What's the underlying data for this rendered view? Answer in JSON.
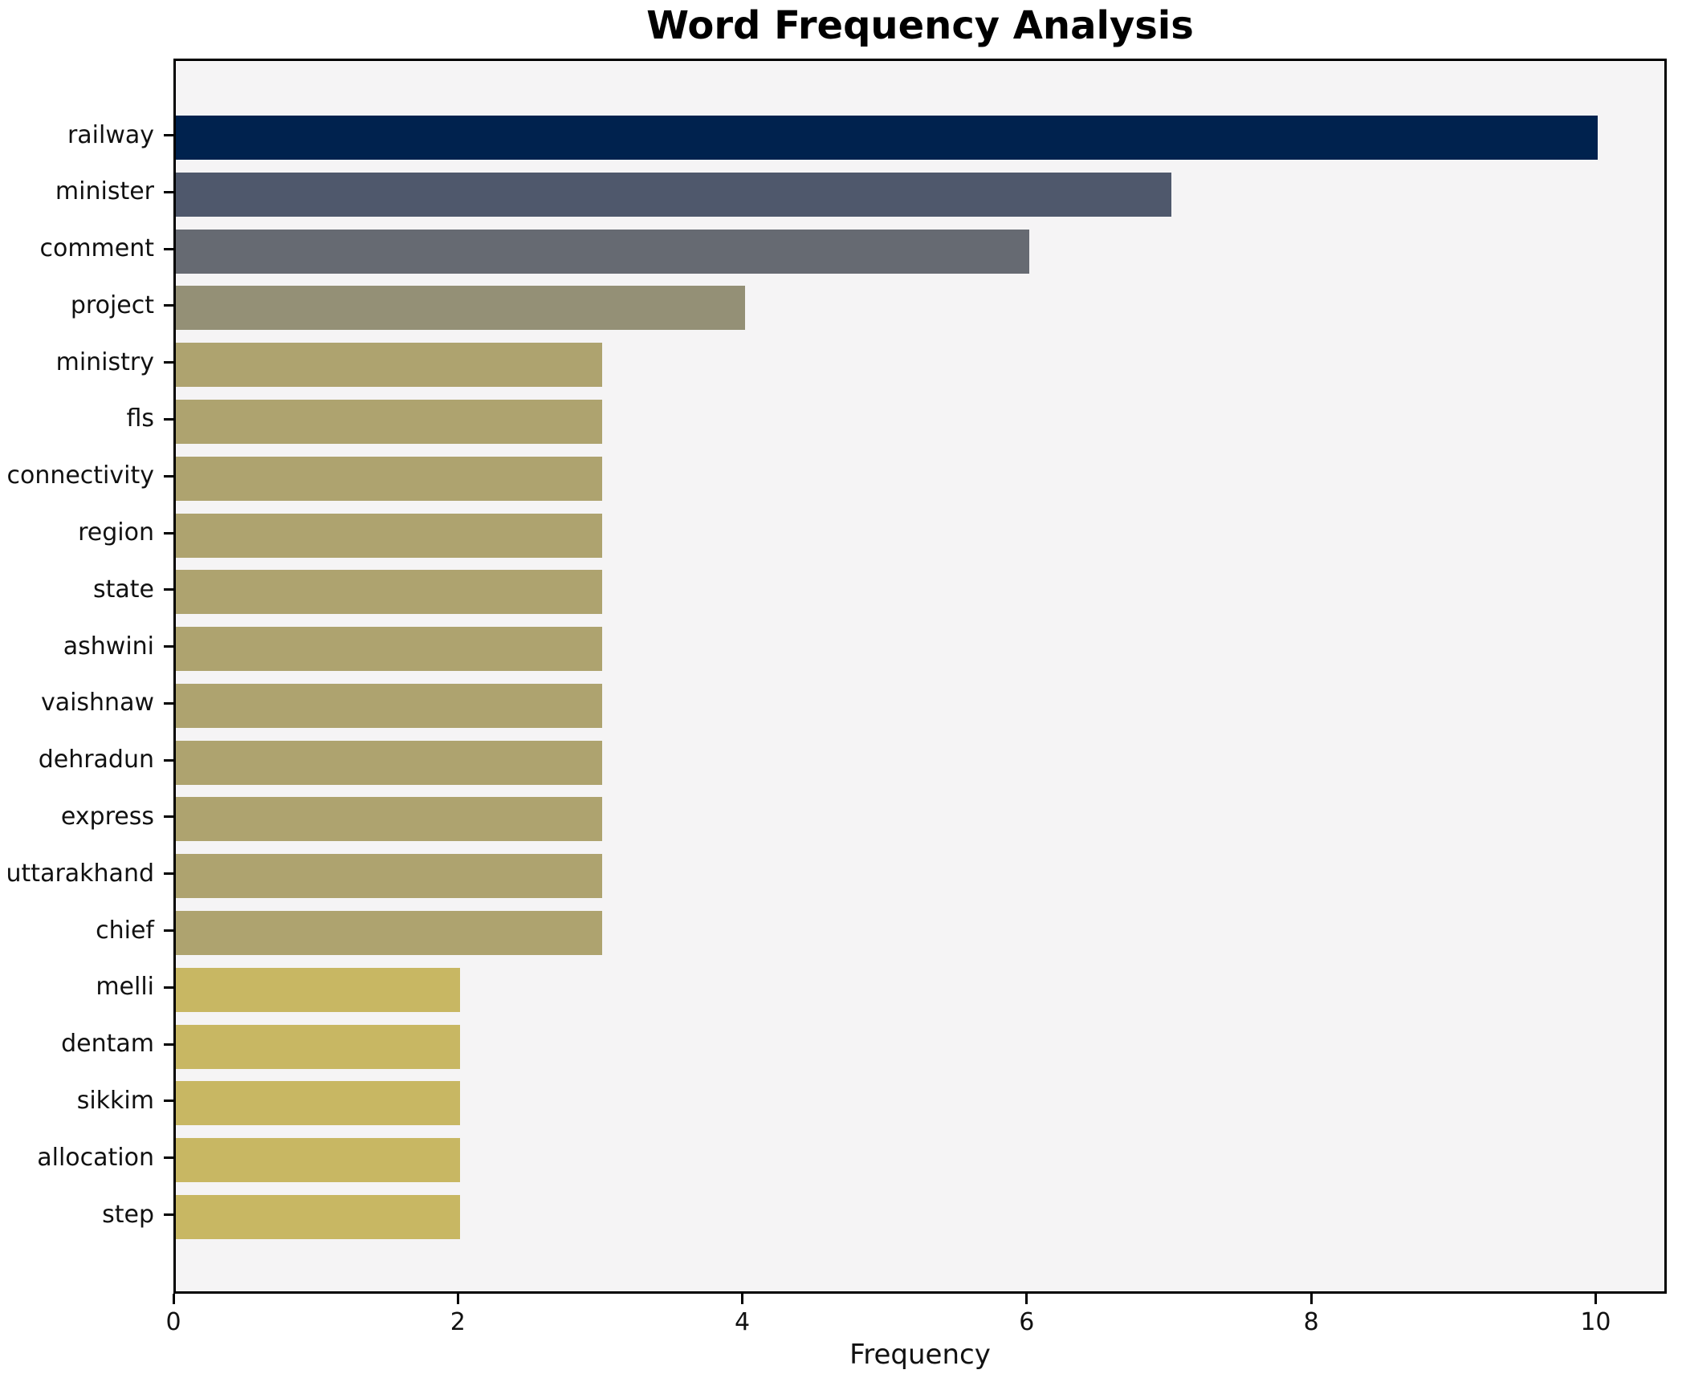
{
  "chart_data": {
    "type": "bar",
    "orientation": "horizontal",
    "title": "Word Frequency Analysis",
    "xlabel": "Frequency",
    "ylabel": "",
    "categories": [
      "railway",
      "minister",
      "comment",
      "project",
      "ministry",
      "fls",
      "connectivity",
      "region",
      "state",
      "ashwini",
      "vaishnaw",
      "dehradun",
      "express",
      "uttarakhand",
      "chief",
      "melli",
      "dentam",
      "sikkim",
      "allocation",
      "step"
    ],
    "values": [
      10,
      7,
      6,
      4,
      3,
      3,
      3,
      3,
      3,
      3,
      3,
      3,
      3,
      3,
      3,
      2,
      2,
      2,
      2,
      2
    ],
    "bar_colors": [
      "#00224e",
      "#4f586c",
      "#666a72",
      "#949076",
      "#aea36f",
      "#aea36f",
      "#aea36f",
      "#aea36f",
      "#aea36f",
      "#aea36f",
      "#aea36f",
      "#aea36f",
      "#aea36f",
      "#aea36f",
      "#aea36f",
      "#c8b763",
      "#c8b763",
      "#c8b763",
      "#c8b763",
      "#c8b763"
    ],
    "xlim": [
      0,
      10.5
    ],
    "x_ticks": [
      0,
      2,
      4,
      6,
      8,
      10
    ],
    "grid": false,
    "legend": "none",
    "plot_bg": "#f5f4f5",
    "fig_bg": "#ffffff",
    "axis_color": "#000000"
  }
}
